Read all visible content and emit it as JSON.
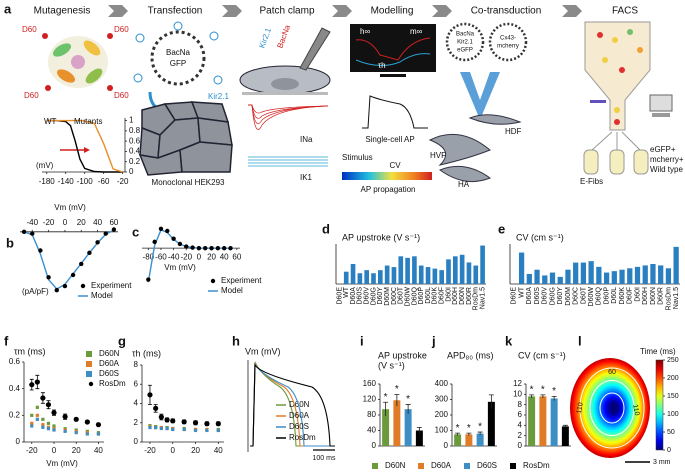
{
  "panel_a": {
    "label": "a",
    "steps": [
      "Mutagenesis",
      "Transfection",
      "Patch clamp",
      "Modelling",
      "Co-transduction",
      "FACS"
    ],
    "mutation_sites": [
      "D60",
      "D60",
      "D60",
      "D60"
    ],
    "plasmid": [
      "BacNa",
      "GFP"
    ],
    "kir": "Kir2.1",
    "cell_line": "Monoclonal HEK293",
    "patch_labels": [
      "Kir2.1",
      "BacNa"
    ],
    "currents": [
      "INa",
      "IK1"
    ],
    "model_labels": [
      "h∞",
      "m∞",
      "τh"
    ],
    "single_ap": "Single-cell AP",
    "stimulus": "Stimulus",
    "cv": "CV",
    "propagation": "AP propagation",
    "vectors": [
      [
        "BacNa",
        "Kir2.1",
        "eGFP"
      ],
      [
        "Cx43-",
        "mcherry"
      ]
    ],
    "cells": [
      "HDF",
      "HVF",
      "HA"
    ],
    "facs": [
      "E-Fibs",
      "eGFP+",
      "mcherry+",
      "Wild type"
    ]
  },
  "chart_data": [
    {
      "type": "line",
      "xlabel": "(mV)",
      "x": [
        -180,
        -160,
        -140,
        -130,
        -120,
        -110,
        -100,
        -80,
        -60,
        -40,
        -20
      ],
      "xlim": [
        -190,
        -15
      ],
      "xticks": [
        -180,
        -140,
        -100,
        -60,
        -20
      ],
      "ylim": [
        0,
        1.05
      ],
      "yticks": [
        0,
        0.2,
        0.4,
        0.6,
        0.8,
        1
      ],
      "series": [
        {
          "name": "WT",
          "color": "#000000",
          "style": "line",
          "values": [
            1,
            1,
            0.98,
            0.9,
            0.6,
            0.25,
            0.07,
            0.01,
            0,
            0,
            0
          ]
        },
        {
          "name": "Mutants",
          "color": "#e8902a",
          "style": "line",
          "values": [
            1,
            1,
            1,
            1,
            1,
            1,
            0.99,
            0.95,
            0.55,
            0.06,
            0
          ]
        }
      ]
    },
    {
      "type": "line",
      "label": "b",
      "title": "Vm (mV)",
      "ylabel": "(pA/pF)",
      "x": [
        -50,
        -40,
        -30,
        -20,
        -10,
        0,
        10,
        20,
        30,
        40,
        50,
        60
      ],
      "xlim": [
        -55,
        65
      ],
      "xticks": [
        -40,
        -20,
        0,
        20,
        40,
        60
      ],
      "ylim": [
        -1.1,
        0.1
      ],
      "series": [
        {
          "name": "Experiment",
          "color": "#000000",
          "style": "points",
          "values": [
            0,
            -0.03,
            -0.32,
            -0.78,
            -1,
            -0.93,
            -0.74,
            -0.55,
            -0.36,
            -0.18,
            -0.03,
            0.04
          ]
        },
        {
          "name": "Model",
          "color": "#3a8fd0",
          "style": "line",
          "values": [
            0,
            -0.05,
            -0.38,
            -0.82,
            -0.98,
            -0.9,
            -0.72,
            -0.54,
            -0.36,
            -0.19,
            -0.04,
            0.03
          ]
        }
      ]
    },
    {
      "type": "line",
      "label": "c",
      "title": "Vm (mV)",
      "x": [
        -80,
        -70,
        -60,
        -50,
        -40,
        -30,
        -20,
        -10,
        0,
        10,
        20,
        30,
        40,
        50
      ],
      "xlim": [
        -90,
        65
      ],
      "xticks": [
        -80,
        -60,
        -40,
        -20,
        0,
        20,
        40,
        60
      ],
      "ylim": [
        -0.8,
        0.5
      ],
      "series": [
        {
          "name": "Experiment",
          "color": "#000000",
          "style": "points",
          "values": [
            -0.6,
            0.12,
            0.37,
            0.33,
            0.18,
            0.08,
            0.03,
            0.01,
            0,
            0,
            0,
            0,
            0,
            0
          ]
        },
        {
          "name": "Model",
          "color": "#3a8fd0",
          "style": "line",
          "values": [
            -0.65,
            0.05,
            0.35,
            0.3,
            0.17,
            0.08,
            0.03,
            0.01,
            0,
            0,
            0,
            0,
            0,
            0
          ]
        }
      ]
    },
    {
      "type": "bar",
      "label": "d",
      "title": "AP upstroke (V s⁻¹)",
      "color": "#2a7fc1",
      "ylim": [
        0,
        130
      ],
      "categories": [
        "D60E",
        "WT",
        "D60A",
        "D60S",
        "D60V",
        "D60G",
        "D60Y",
        "D60M",
        "D60C",
        "D60T",
        "D60W",
        "D60Q",
        "D60P",
        "D60L",
        "D60K",
        "D60F",
        "D60I",
        "D60H",
        "D60N",
        "D60R",
        "RosDm",
        "Nav1.5"
      ],
      "values": [
        0,
        40,
        65,
        35,
        45,
        35,
        45,
        60,
        55,
        90,
        85,
        90,
        60,
        55,
        50,
        45,
        80,
        90,
        95,
        70,
        60,
        125
      ]
    },
    {
      "type": "bar",
      "label": "e",
      "title": "CV (cm s⁻¹)",
      "color": "#2a7fc1",
      "ylim": [
        0,
        28
      ],
      "categories": [
        "D60E",
        "WT",
        "D60A",
        "D60S",
        "D60V",
        "D60G",
        "D60Y",
        "D60M",
        "D60C",
        "D60T",
        "D60W",
        "D60Q",
        "D60P",
        "D60L",
        "D60K",
        "D60F",
        "D60I",
        "D60H",
        "D60N",
        "D60R",
        "RosDm",
        "Nav1.5"
      ],
      "values": [
        0,
        22,
        7,
        10,
        6,
        8,
        5,
        10,
        15,
        15,
        16,
        12,
        8,
        9,
        10,
        11,
        12,
        13,
        14,
        13,
        11,
        26
      ]
    },
    {
      "type": "scatter",
      "label": "f",
      "title": "τm (ms)",
      "xlabel": "Vm (mV)",
      "x": [
        -20,
        -15,
        -10,
        -5,
        0,
        10,
        20,
        30,
        40
      ],
      "xlim": [
        -27,
        45
      ],
      "xticks": [
        -20,
        0,
        20,
        40
      ],
      "ylim": [
        0,
        0.6
      ],
      "yticks": [
        0,
        0.2,
        0.4,
        0.6
      ],
      "series": [
        {
          "name": "D60N",
          "color": "#6a9a3a",
          "values": [
            0.2,
            0.26,
            0.17,
            0.14,
            0.12,
            0.1,
            0.09,
            0.08,
            0.07
          ]
        },
        {
          "name": "D60A",
          "color": "#e07b27",
          "values": [
            0.14,
            0.2,
            0.13,
            0.11,
            0.1,
            0.09,
            0.08,
            0.07,
            0.06
          ]
        },
        {
          "name": "D60S",
          "color": "#3c8ec4",
          "values": [
            0.12,
            0.17,
            0.11,
            0.1,
            0.09,
            0.08,
            0.07,
            0.06,
            0.06
          ]
        },
        {
          "name": "RosDm",
          "color": "#000000",
          "values": [
            0.43,
            0.45,
            0.33,
            0.28,
            0.22,
            0.19,
            0.17,
            0.15,
            0.13
          ],
          "errors": [
            0.04,
            0.05,
            0.04,
            0.03,
            0.02,
            0.02,
            0.01,
            0.01,
            0.01
          ]
        }
      ]
    },
    {
      "type": "scatter",
      "label": "g",
      "title": "τh (ms)",
      "x": [
        -20,
        -15,
        -10,
        -5,
        0,
        10,
        20,
        30,
        40
      ],
      "xlim": [
        -27,
        45
      ],
      "xticks": [
        -20,
        0,
        20,
        40
      ],
      "ylim": [
        0,
        8
      ],
      "yticks": [
        0,
        2,
        4,
        6,
        8
      ],
      "series": [
        {
          "color": "#6a9a3a",
          "values": [
            1.7,
            1.6,
            1.5,
            1.5,
            1.4,
            1.4,
            1.3,
            1.3,
            1.3
          ]
        },
        {
          "color": "#e07b27",
          "values": [
            1.6,
            1.5,
            1.5,
            1.4,
            1.4,
            1.3,
            1.3,
            1.3,
            1.2
          ]
        },
        {
          "color": "#3c8ec4",
          "values": [
            1.5,
            1.5,
            1.4,
            1.4,
            1.3,
            1.3,
            1.2,
            1.2,
            1.2
          ]
        },
        {
          "color": "#000000",
          "values": [
            4.9,
            3.5,
            2.6,
            2.3,
            2.2,
            2.1,
            2.0,
            1.9,
            1.9
          ],
          "errors": [
            1.0,
            0.4,
            0.3,
            0.2,
            0.2,
            0.2,
            0.2,
            0.2,
            0.2
          ]
        }
      ]
    },
    {
      "type": "trace",
      "label": "h",
      "title": "Vm (mV)",
      "scale_label": "100 ms",
      "series": [
        {
          "name": "D60N",
          "color": "#6a9a3a"
        },
        {
          "name": "D60A",
          "color": "#e07b27"
        },
        {
          "name": "D60S",
          "color": "#3c8ec4"
        },
        {
          "name": "RosDm",
          "color": "#000000"
        }
      ]
    },
    {
      "type": "bar",
      "label": "i",
      "title": [
        "AP upstroke",
        "(V s⁻¹)"
      ],
      "categories": [
        "D60N",
        "D60A",
        "D60S",
        "RosDm"
      ],
      "colors": [
        "#6a9a3a",
        "#e07b27",
        "#3c8ec4",
        "#000000"
      ],
      "values": [
        95,
        118,
        95,
        40
      ],
      "errors": [
        18,
        15,
        12,
        8
      ],
      "ylim": [
        0,
        160
      ],
      "yticks": [
        0,
        40,
        80,
        120,
        160
      ],
      "significance": "*",
      "significant": [
        true,
        true,
        true,
        false
      ]
    },
    {
      "type": "bar",
      "label": "j",
      "title": [
        "APD₈₀ (ms)"
      ],
      "colors": [
        "#6a9a3a",
        "#e07b27",
        "#3c8ec4",
        "#000000"
      ],
      "values": [
        75,
        75,
        80,
        285
      ],
      "errors": [
        8,
        8,
        10,
        45
      ],
      "ylim": [
        0,
        400
      ],
      "yticks": [
        0,
        100,
        200,
        300,
        400
      ],
      "significance": "*",
      "significant": [
        true,
        true,
        true,
        false
      ]
    },
    {
      "type": "bar",
      "label": "k",
      "title": [
        "CV (cm s⁻¹)"
      ],
      "colors": [
        "#6a9a3a",
        "#e07b27",
        "#3c8ec4",
        "#000000"
      ],
      "values": [
        9.6,
        9.6,
        9.2,
        3.8
      ],
      "errors": [
        0.3,
        0.3,
        0.4,
        0.2
      ],
      "ylim": [
        0,
        12
      ],
      "yticks": [
        0,
        2,
        4,
        6,
        8,
        10,
        12
      ],
      "significance": "*",
      "significant": [
        true,
        true,
        true,
        false
      ]
    },
    {
      "type": "heatmap",
      "label": "l",
      "title": "Time (ms)",
      "clim": [
        0,
        250
      ],
      "cticks": [
        0,
        50,
        100,
        150,
        200,
        250
      ],
      "contour_labels": [
        "110",
        "60",
        "110"
      ],
      "scale_label": "3 mm"
    }
  ]
}
